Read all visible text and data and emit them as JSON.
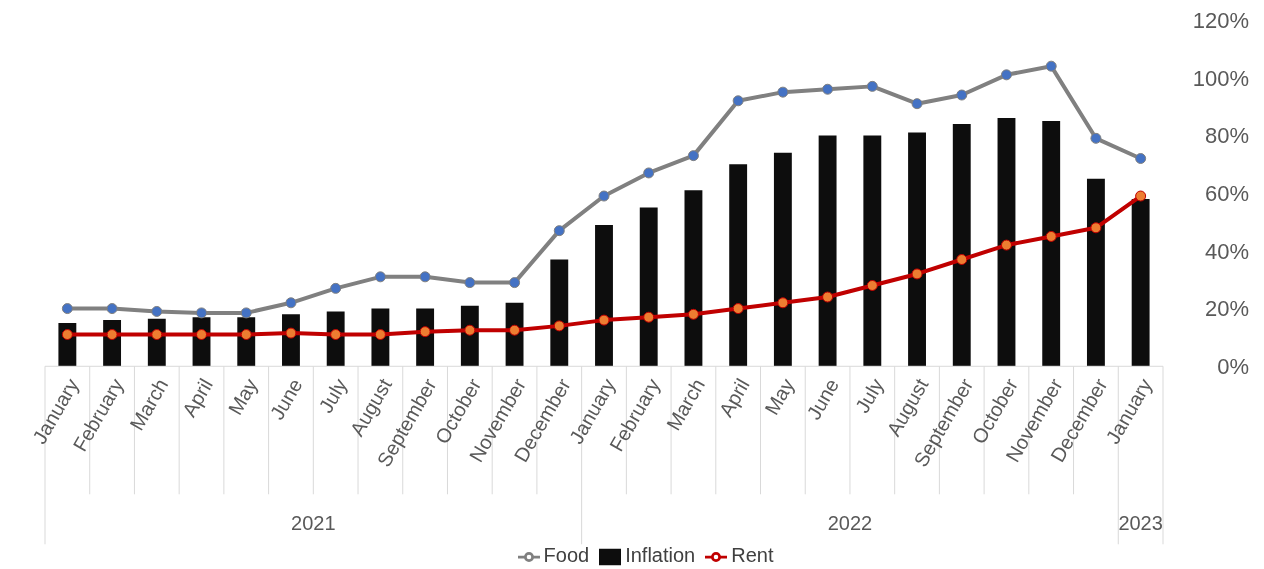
{
  "chart_data": {
    "type": "bar",
    "categories": [
      "January",
      "February",
      "March",
      "April",
      "May",
      "June",
      "July",
      "August",
      "September",
      "October",
      "November",
      "December",
      "January",
      "February",
      "March",
      "April",
      "May",
      "June",
      "July",
      "August",
      "September",
      "October",
      "November",
      "December",
      "January"
    ],
    "annotations": [
      "2021",
      "2022",
      "2023"
    ],
    "series": [
      {
        "name": "Inflation",
        "color": "#0d0d0d",
        "values": [
          15,
          16,
          16.5,
          17,
          17,
          18,
          19,
          20,
          20,
          21,
          22,
          37,
          49,
          55,
          61,
          70,
          74,
          80,
          80,
          81,
          84,
          86,
          85,
          65,
          58
        ]
      },
      {
        "name": "Food",
        "type": "line",
        "color": "#808080",
        "values": [
          20,
          20,
          19,
          18.5,
          18.5,
          22,
          27,
          31,
          31,
          29,
          29,
          47,
          59,
          67,
          73,
          92,
          95,
          96,
          97,
          91,
          94,
          101,
          104,
          79,
          72
        ]
      },
      {
        "name": "Rent",
        "type": "line",
        "color": "#c00000",
        "values": [
          11,
          11,
          11,
          11,
          11,
          11.5,
          11,
          11,
          12,
          12.5,
          12.5,
          14,
          16,
          17,
          18,
          20,
          22,
          24,
          28,
          32,
          37,
          42,
          45,
          48,
          59
        ]
      }
    ],
    "ylim": [
      0,
      120
    ],
    "yticks": [
      {
        "value": 0,
        "label": "0%"
      },
      {
        "value": 20,
        "label": "20%"
      },
      {
        "value": 40,
        "label": "40%"
      },
      {
        "value": 60,
        "label": "60%"
      },
      {
        "value": 80,
        "label": "80%"
      },
      {
        "value": 100,
        "label": "100%"
      },
      {
        "value": 120,
        "label": "120%"
      }
    ],
    "grid": false,
    "legend": "bottom",
    "marker": "circle"
  }
}
